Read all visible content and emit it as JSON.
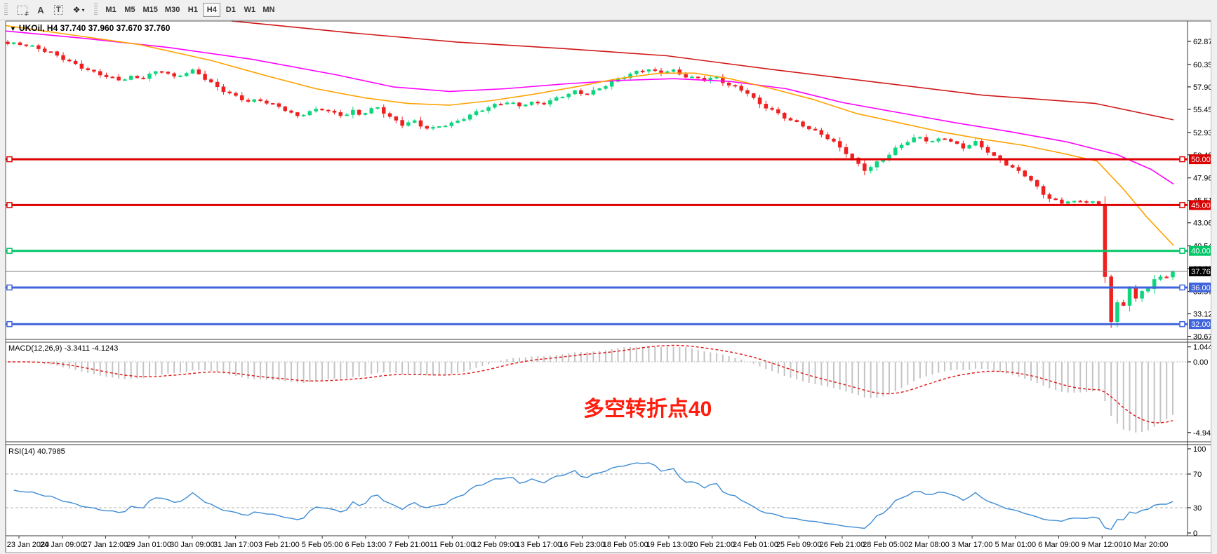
{
  "toolbar": {
    "icon_buttons": [
      {
        "name": "indicator-window-icon",
        "glyph": "F"
      },
      {
        "name": "text-a-icon",
        "glyph": "A"
      },
      {
        "name": "text-label-icon",
        "glyph": "T"
      },
      {
        "name": "objects-icon",
        "glyph": "❖"
      },
      {
        "name": "dropdown-caret",
        "glyph": "▾"
      }
    ],
    "timeframes": [
      {
        "label": "M1",
        "active": false
      },
      {
        "label": "M5",
        "active": false
      },
      {
        "label": "M15",
        "active": false
      },
      {
        "label": "M30",
        "active": false
      },
      {
        "label": "H1",
        "active": false
      },
      {
        "label": "H4",
        "active": true
      },
      {
        "label": "D1",
        "active": false
      },
      {
        "label": "W1",
        "active": false
      },
      {
        "label": "MN",
        "active": false
      }
    ]
  },
  "chart": {
    "title": {
      "collapse_icon": "▼",
      "text": "UKOil, H4  37.740 37.960 37.670 37.760"
    },
    "annotation": {
      "text": "多空转折点40",
      "color": "#ff1d0d"
    }
  },
  "chart_data": {
    "type": "candlestick",
    "symbol": "UKOil",
    "period": "H4",
    "last_ohlc": {
      "open": 37.74,
      "high": 37.96,
      "low": 37.67,
      "close": 37.76
    },
    "bars": 190,
    "price_axis": {
      "min": 30.33,
      "max": 65.09,
      "labels": [
        "62.870",
        "60.350",
        "57.900",
        "55.450",
        "52.930",
        "50.480",
        "47.960",
        "45.510",
        "43.060",
        "40.540",
        "38.080",
        "35.570",
        "33.120",
        "30.670"
      ]
    },
    "colors": {
      "bull": "#0ed67e",
      "bear": "#ef2020",
      "ma_red": "#d01818",
      "ma_magenta": "#ff00ff",
      "ma_orange": "#ffa200",
      "hline_red": "#dd0000",
      "hline_green": "#00c868",
      "hline_blue": "#3f63dc",
      "price_line": "#808080",
      "price_box": "#000000",
      "macd_hist": "#c4c4c4",
      "macd_signal": "#e02020",
      "rsi_line": "#3d8bd4"
    },
    "hlines": [
      {
        "price": 50.0,
        "label": "50.000",
        "color_key": "hline_red"
      },
      {
        "price": 45.0,
        "label": "45.000",
        "color_key": "hline_red"
      },
      {
        "price": 40.0,
        "label": "40.000",
        "color_key": "hline_green"
      },
      {
        "price": 36.0,
        "label": "36.000",
        "color_key": "hline_blue"
      },
      {
        "price": 32.0,
        "label": "32.000",
        "color_key": "hline_blue"
      }
    ],
    "price_line": {
      "price": 37.76,
      "label": "37.760"
    },
    "close_path": [
      [
        8,
        62.6
      ],
      [
        27,
        62.5
      ],
      [
        50,
        62.1
      ],
      [
        70,
        61.7
      ],
      [
        89,
        61.0
      ],
      [
        110,
        60.1
      ],
      [
        130,
        59.4
      ],
      [
        150,
        59.0
      ],
      [
        168,
        58.7
      ],
      [
        182,
        59.1
      ],
      [
        197,
        58.8
      ],
      [
        212,
        59.3
      ],
      [
        230,
        59.6
      ],
      [
        245,
        58.9
      ],
      [
        262,
        59.5
      ],
      [
        274,
        59.8
      ],
      [
        290,
        58.8
      ],
      [
        305,
        57.9
      ],
      [
        320,
        57.2
      ],
      [
        336,
        56.7
      ],
      [
        352,
        56.3
      ],
      [
        366,
        56.6
      ],
      [
        382,
        56.1
      ],
      [
        397,
        55.7
      ],
      [
        410,
        55.0
      ],
      [
        421,
        54.6
      ],
      [
        433,
        55.0
      ],
      [
        446,
        55.4
      ],
      [
        459,
        55.6
      ],
      [
        472,
        55.1
      ],
      [
        486,
        54.8
      ],
      [
        500,
        55.2
      ],
      [
        511,
        54.7
      ],
      [
        522,
        55.3
      ],
      [
        536,
        55.6
      ],
      [
        548,
        54.9
      ],
      [
        560,
        54.3
      ],
      [
        572,
        53.8
      ],
      [
        584,
        54.3
      ],
      [
        597,
        53.6
      ],
      [
        611,
        53.2
      ],
      [
        626,
        53.6
      ],
      [
        644,
        54.0
      ],
      [
        661,
        54.7
      ],
      [
        676,
        55.2
      ],
      [
        691,
        55.6
      ],
      [
        706,
        55.9
      ],
      [
        721,
        56.2
      ],
      [
        736,
        55.8
      ],
      [
        751,
        56.3
      ],
      [
        768,
        56.1
      ],
      [
        786,
        56.5
      ],
      [
        801,
        56.9
      ],
      [
        816,
        57.3
      ],
      [
        831,
        57.1
      ],
      [
        846,
        57.6
      ],
      [
        861,
        58.2
      ],
      [
        876,
        58.7
      ],
      [
        891,
        59.1
      ],
      [
        906,
        59.5
      ],
      [
        921,
        59.8
      ],
      [
        936,
        59.4
      ],
      [
        953,
        59.9
      ],
      [
        966,
        59.3
      ],
      [
        981,
        58.9
      ],
      [
        1000,
        58.6
      ],
      [
        1016,
        58.9
      ],
      [
        1031,
        58.3
      ],
      [
        1046,
        57.9
      ],
      [
        1061,
        57.4
      ],
      [
        1077,
        56.1
      ],
      [
        1091,
        55.5
      ],
      [
        1106,
        54.9
      ],
      [
        1121,
        54.3
      ],
      [
        1138,
        53.9
      ],
      [
        1153,
        53.3
      ],
      [
        1169,
        52.7
      ],
      [
        1186,
        51.7
      ],
      [
        1200,
        50.8
      ],
      [
        1216,
        49.7
      ],
      [
        1231,
        48.8
      ],
      [
        1246,
        49.7
      ],
      [
        1262,
        50.4
      ],
      [
        1276,
        51.3
      ],
      [
        1291,
        51.9
      ],
      [
        1306,
        52.4
      ],
      [
        1324,
        51.9
      ],
      [
        1341,
        52.5
      ],
      [
        1356,
        51.8
      ],
      [
        1371,
        51.2
      ],
      [
        1386,
        51.8
      ],
      [
        1401,
        51.0
      ],
      [
        1413,
        50.3
      ],
      [
        1426,
        49.8
      ],
      [
        1436,
        49.3
      ],
      [
        1447,
        48.8
      ],
      [
        1461,
        48.1
      ],
      [
        1471,
        47.2
      ],
      [
        1481,
        46.3
      ],
      [
        1491,
        45.7
      ],
      [
        1501,
        45.4
      ],
      [
        1509,
        45.2
      ],
      [
        1521,
        45.6
      ],
      [
        1531,
        45.3
      ],
      [
        1541,
        45.6
      ],
      [
        1552,
        45.3
      ],
      [
        1562,
        45.5
      ],
      [
        1570,
        38.5
      ],
      [
        1576,
        33.0
      ],
      [
        1582,
        31.8
      ],
      [
        1588,
        34.4
      ],
      [
        1594,
        32.9
      ],
      [
        1600,
        34.8
      ],
      [
        1606,
        36.0
      ],
      [
        1612,
        35.4
      ],
      [
        1618,
        34.2
      ],
      [
        1624,
        35.7
      ],
      [
        1630,
        36.3
      ],
      [
        1636,
        35.8
      ],
      [
        1642,
        36.9
      ],
      [
        1648,
        37.4
      ],
      [
        1654,
        36.8
      ],
      [
        1660,
        37.3
      ],
      [
        1668,
        37.76
      ]
    ],
    "ma_lines": [
      {
        "name": "ma-slow-red",
        "color_key": "ma_red",
        "points": [
          [
            330,
            65.1
          ],
          [
            500,
            63.8
          ],
          [
            650,
            62.8
          ],
          [
            800,
            62.1
          ],
          [
            950,
            61.3
          ],
          [
            1100,
            59.8
          ],
          [
            1250,
            58.4
          ],
          [
            1400,
            57.0
          ],
          [
            1560,
            56.1
          ],
          [
            1672,
            54.3
          ]
        ]
      },
      {
        "name": "ma-mid-magenta",
        "color_key": "ma_magenta",
        "points": [
          [
            8,
            64.0
          ],
          [
            120,
            63.2
          ],
          [
            240,
            62.2
          ],
          [
            360,
            60.9
          ],
          [
            480,
            59.2
          ],
          [
            560,
            57.9
          ],
          [
            640,
            57.4
          ],
          [
            720,
            57.7
          ],
          [
            800,
            58.2
          ],
          [
            880,
            58.6
          ],
          [
            960,
            58.8
          ],
          [
            1040,
            58.5
          ],
          [
            1120,
            57.7
          ],
          [
            1200,
            56.2
          ],
          [
            1280,
            55.1
          ],
          [
            1360,
            54.0
          ],
          [
            1440,
            53.0
          ],
          [
            1520,
            51.9
          ],
          [
            1592,
            50.5
          ],
          [
            1640,
            48.9
          ],
          [
            1672,
            47.3
          ]
        ]
      },
      {
        "name": "ma-fast-orange",
        "color_key": "ma_orange",
        "points": [
          [
            8,
            64.6
          ],
          [
            100,
            63.6
          ],
          [
            200,
            62.5
          ],
          [
            300,
            60.8
          ],
          [
            380,
            59.1
          ],
          [
            450,
            57.7
          ],
          [
            520,
            56.7
          ],
          [
            580,
            56.1
          ],
          [
            640,
            55.9
          ],
          [
            700,
            56.4
          ],
          [
            760,
            57.1
          ],
          [
            820,
            57.9
          ],
          [
            880,
            58.8
          ],
          [
            940,
            59.4
          ],
          [
            990,
            59.4
          ],
          [
            1040,
            58.8
          ],
          [
            1100,
            57.7
          ],
          [
            1160,
            56.5
          ],
          [
            1220,
            55.0
          ],
          [
            1280,
            54.0
          ],
          [
            1340,
            53.0
          ],
          [
            1400,
            52.2
          ],
          [
            1460,
            51.5
          ],
          [
            1510,
            50.7
          ],
          [
            1563,
            49.8
          ],
          [
            1600,
            46.8
          ],
          [
            1635,
            43.6
          ],
          [
            1672,
            40.6
          ]
        ]
      }
    ],
    "macd": {
      "label": "MACD(12,26,9) -3.3411 -4.1243",
      "fast": 12,
      "slow": 26,
      "signal_period": 9,
      "value": -3.3411,
      "signal": -4.1243,
      "axis_labels": [
        "1.0446",
        "0.00",
        "-4.9417"
      ],
      "max": 1.0446,
      "min": -4.9417
    },
    "rsi": {
      "label": "RSI(14) 40.7985",
      "period": 14,
      "value": 40.7985,
      "axis_labels": [
        "100",
        "70",
        "30",
        "0"
      ],
      "levels": [
        70,
        30
      ]
    },
    "time_labels": [
      "23 Jan 2020",
      "24 Jan 09:00",
      "27 Jan 12:00",
      "29 Jan 01:00",
      "30 Jan 09:00",
      "31 Jan 17:00",
      "3 Feb 21:00",
      "5 Feb 05:00",
      "6 Feb 13:00",
      "7 Feb 21:00",
      "11 Feb 01:00",
      "12 Feb 09:00",
      "13 Feb 17:00",
      "16 Feb 23:00",
      "18 Feb 05:00",
      "19 Feb 13:00",
      "20 Feb 21:00",
      "24 Feb 01:00",
      "25 Feb 09:00",
      "26 Feb 21:00",
      "28 Feb 05:00",
      "2 Mar 08:00",
      "3 Mar 17:00",
      "5 Mar 01:00",
      "6 Mar 09:00",
      "9 Mar 12:00",
      "10 Mar 20:00"
    ]
  }
}
